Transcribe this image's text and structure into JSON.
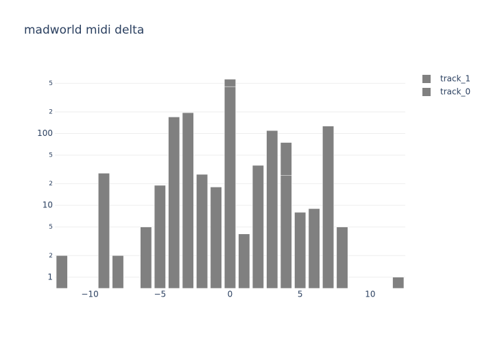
{
  "chart_data": {
    "type": "bar",
    "barmode": "stack",
    "title": "madworld midi delta",
    "x": [
      -12,
      -9,
      -8,
      -6,
      -5,
      -4,
      -3,
      -2,
      -1,
      0,
      1,
      2,
      3,
      4,
      5,
      6,
      7,
      8,
      12
    ],
    "series": [
      {
        "name": "track_0",
        "color": "#808080",
        "values": [
          2,
          28,
          2,
          5,
          19,
          170,
          195,
          27,
          18,
          450,
          4,
          36,
          110,
          26,
          8,
          9,
          127,
          5,
          1
        ]
      },
      {
        "name": "track_1",
        "color": "#808080",
        "values": [
          null,
          null,
          null,
          null,
          null,
          null,
          null,
          null,
          null,
          120,
          null,
          null,
          null,
          49,
          null,
          null,
          null,
          null,
          null
        ]
      }
    ],
    "xlim": [
      -12.5,
      12.5
    ],
    "xticks": [
      {
        "value": -10,
        "label": "−10"
      },
      {
        "value": -5,
        "label": "−5"
      },
      0,
      5,
      10
    ],
    "ylim": [
      0.7,
      800
    ],
    "ylog": true,
    "yticks": [
      1,
      2,
      5,
      10,
      {
        "value": 20,
        "label": "2"
      },
      {
        "value": 50,
        "label": "5"
      },
      100,
      {
        "value": 200,
        "label": "2"
      },
      {
        "value": 500,
        "label": "5"
      }
    ],
    "grid": true,
    "legend": "top-right"
  }
}
